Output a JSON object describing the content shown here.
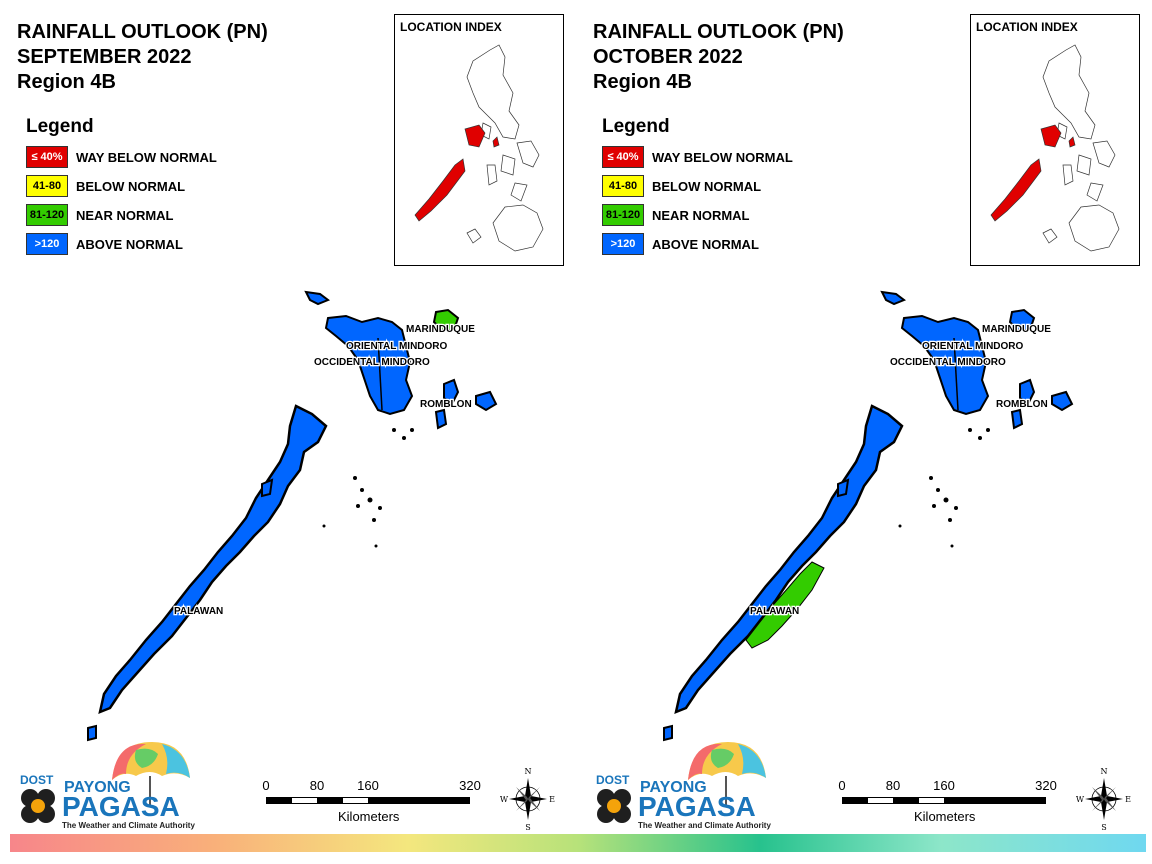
{
  "panels": [
    {
      "title": [
        "RAINFALL OUTLOOK (PN)",
        "SEPTEMBER 2022",
        "Region 4B"
      ],
      "legend_title": "Legend",
      "legend": [
        {
          "swatch": "≤ 40%",
          "label": "WAY BELOW NORMAL",
          "color": "#e00000",
          "text_color": "#ffffff"
        },
        {
          "swatch": "41-80",
          "label": "BELOW NORMAL",
          "color": "#ffff00",
          "text_color": "#000000"
        },
        {
          "swatch": "81-120",
          "label": "NEAR NORMAL",
          "color": "#33cc00",
          "text_color": "#000000"
        },
        {
          "swatch": ">120",
          "label": "ABOVE NORMAL",
          "color": "#0066ff",
          "text_color": "#ffffff"
        }
      ],
      "inset_title": "LOCATION INDEX",
      "provinces": [
        "MARINDUQUE",
        "ORIENTAL MINDORO",
        "OCCIDENTAL MINDORO",
        "ROMBLON",
        "PALAWAN"
      ],
      "province_status": {
        "marinduque": "NEAR NORMAL",
        "mindoro": "ABOVE NORMAL",
        "romblon": "ABOVE NORMAL",
        "palawan": "ABOVE NORMAL"
      },
      "scale": {
        "ticks": [
          "0",
          "80",
          "160",
          "320"
        ],
        "unit": "Kilometers"
      },
      "logo": {
        "dost": "DOST",
        "payong": "PAYONG",
        "pagasa": "PAGASA",
        "tagline": "The Weather and Climate Authority"
      },
      "compass": {
        "n": "N",
        "e": "E",
        "s": "S",
        "w": "W"
      }
    },
    {
      "title": [
        "RAINFALL OUTLOOK (PN)",
        "OCTOBER 2022",
        "Region 4B"
      ],
      "legend_title": "Legend",
      "legend": [
        {
          "swatch": "≤ 40%",
          "label": "WAY BELOW NORMAL",
          "color": "#e00000",
          "text_color": "#ffffff"
        },
        {
          "swatch": "41-80",
          "label": "BELOW NORMAL",
          "color": "#ffff00",
          "text_color": "#000000"
        },
        {
          "swatch": "81-120",
          "label": "NEAR NORMAL",
          "color": "#33cc00",
          "text_color": "#000000"
        },
        {
          "swatch": ">120",
          "label": "ABOVE NORMAL",
          "color": "#0066ff",
          "text_color": "#ffffff"
        }
      ],
      "inset_title": "LOCATION INDEX",
      "provinces": [
        "MARINDUQUE",
        "ORIENTAL MINDORO",
        "OCCIDENTAL MINDORO",
        "ROMBLON",
        "PALAWAN"
      ],
      "province_status": {
        "marinduque": "ABOVE NORMAL",
        "mindoro": "ABOVE NORMAL",
        "romblon": "ABOVE NORMAL",
        "palawan": "ABOVE NORMAL with NEAR NORMAL central portion"
      },
      "scale": {
        "ticks": [
          "0",
          "80",
          "160",
          "320"
        ],
        "unit": "Kilometers"
      },
      "logo": {
        "dost": "DOST",
        "payong": "PAYONG",
        "pagasa": "PAGASA",
        "tagline": "The Weather and Climate Authority"
      },
      "compass": {
        "n": "N",
        "e": "E",
        "s": "S",
        "w": "W"
      }
    }
  ],
  "colors": {
    "above_normal": "#0066ff",
    "near_normal": "#33cc00",
    "way_below_normal": "#e00000",
    "below_normal": "#ffff00"
  }
}
